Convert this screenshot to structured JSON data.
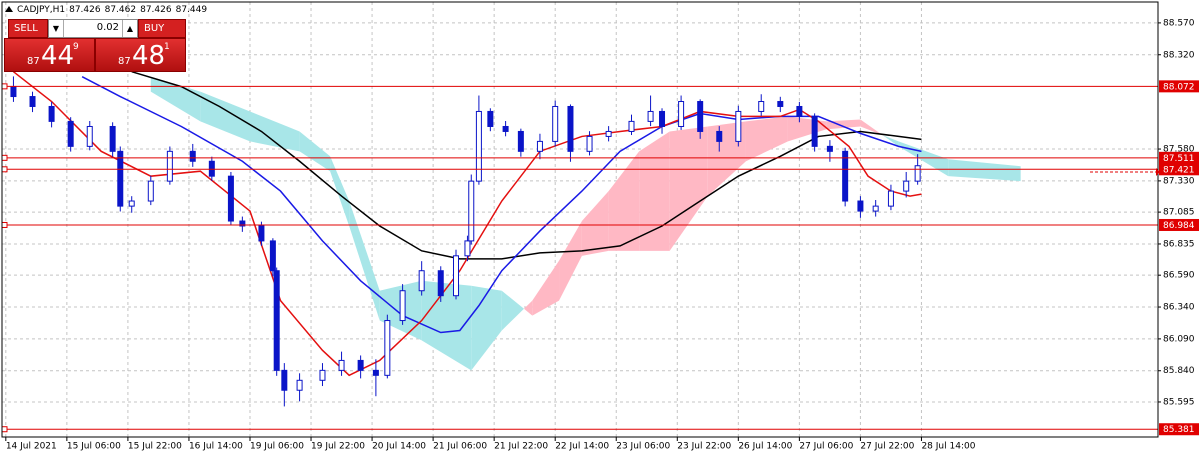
{
  "chart_data": {
    "type": "candlestick",
    "title": "CADJPY,H1",
    "header_ohlc": [
      87.426,
      87.462,
      87.426,
      87.449
    ],
    "candle_color": "#0a14c8",
    "x": [
      2,
      7,
      12,
      17,
      22,
      28,
      30,
      33,
      38,
      43,
      49,
      54,
      59,
      62,
      67,
      70,
      71,
      73,
      77,
      83,
      88,
      93,
      97,
      100,
      104,
      109,
      114,
      118,
      121,
      122,
      124,
      127,
      131,
      135,
      140,
      144,
      148,
      153,
      158,
      164,
      169,
      172,
      177,
      182,
      187,
      192,
      198,
      203,
      208,
      212,
      216,
      220,
      224,
      228,
      232,
      236,
      239
    ],
    "open": [
      88.07,
      87.992,
      87.914,
      87.797,
      87.601,
      87.757,
      87.562,
      87.132,
      87.172,
      87.328,
      87.562,
      87.484,
      87.367,
      87.015,
      86.976,
      86.859,
      86.625,
      85.843,
      85.687,
      85.765,
      85.843,
      85.921,
      85.843,
      85.804,
      86.234,
      86.468,
      86.625,
      86.429,
      86.742,
      86.859,
      87.328,
      87.875,
      87.757,
      87.718,
      87.562,
      87.64,
      87.914,
      87.562,
      87.679,
      87.718,
      87.797,
      87.875,
      87.757,
      87.953,
      87.718,
      87.64,
      87.875,
      87.953,
      87.914,
      87.836,
      87.601,
      87.562,
      87.172,
      87.093,
      87.132,
      87.25,
      87.328
    ],
    "high": [
      88.15,
      88.03,
      87.95,
      87.83,
      87.8,
      87.79,
      87.6,
      87.21,
      87.37,
      87.6,
      87.62,
      87.52,
      87.4,
      87.05,
      87.01,
      86.88,
      86.65,
      85.9,
      85.82,
      85.9,
      85.99,
      85.96,
      85.93,
      86.28,
      86.52,
      86.7,
      86.66,
      86.79,
      86.9,
      87.38,
      88.0,
      87.9,
      87.8,
      87.74,
      87.7,
      87.96,
      87.93,
      87.72,
      87.76,
      87.85,
      88.0,
      87.9,
      88.0,
      87.97,
      87.76,
      87.92,
      88.01,
      87.99,
      87.95,
      87.86,
      87.65,
      87.59,
      87.21,
      87.18,
      87.3,
      87.4,
      87.54
    ],
    "low": [
      87.95,
      87.87,
      87.75,
      87.56,
      87.57,
      87.52,
      87.09,
      87.08,
      87.14,
      87.3,
      87.44,
      87.33,
      86.98,
      86.93,
      86.82,
      86.58,
      85.8,
      85.56,
      85.6,
      85.72,
      85.8,
      85.78,
      85.64,
      85.78,
      86.2,
      86.43,
      86.38,
      86.4,
      86.7,
      86.83,
      87.3,
      87.72,
      87.68,
      87.52,
      87.5,
      87.6,
      87.48,
      87.53,
      87.64,
      87.69,
      87.76,
      87.7,
      87.73,
      87.66,
      87.56,
      87.6,
      87.84,
      87.87,
      87.79,
      87.56,
      87.48,
      87.13,
      87.04,
      87.05,
      87.1,
      87.2,
      87.3
    ],
    "close": [
      87.992,
      87.914,
      87.797,
      87.601,
      87.757,
      87.562,
      87.132,
      87.172,
      87.328,
      87.562,
      87.484,
      87.367,
      87.015,
      86.976,
      86.859,
      86.625,
      85.843,
      85.687,
      85.765,
      85.843,
      85.921,
      85.843,
      85.804,
      86.234,
      86.468,
      86.625,
      86.429,
      86.742,
      86.859,
      87.328,
      87.875,
      87.757,
      87.718,
      87.562,
      87.64,
      87.914,
      87.562,
      87.679,
      87.718,
      87.797,
      87.875,
      87.757,
      87.953,
      87.718,
      87.64,
      87.875,
      87.953,
      87.914,
      87.836,
      87.601,
      87.562,
      87.172,
      87.093,
      87.132,
      87.25,
      87.328,
      87.449
    ],
    "moving_averages": [
      {
        "color": "#000000",
        "x": [
          33,
          46,
          56,
          67,
          77,
          88,
          98,
          109,
          119,
          130,
          140,
          151,
          161,
          172,
          182,
          192,
          203,
          213,
          224,
          234,
          240
        ],
        "values": [
          88.187,
          88.07,
          87.914,
          87.718,
          87.484,
          87.211,
          86.976,
          86.781,
          86.718,
          86.718,
          86.765,
          86.781,
          86.82,
          86.976,
          87.172,
          87.367,
          87.523,
          87.679,
          87.718,
          87.679,
          87.656
        ]
      },
      {
        "color": "#1a1ae6",
        "x": [
          20,
          30,
          46,
          62,
          72,
          83,
          93,
          104,
          114,
          119,
          124,
          130,
          140,
          151,
          161,
          172,
          182,
          192,
          203,
          213,
          224,
          234,
          240
        ],
        "values": [
          88.148,
          87.992,
          87.757,
          87.484,
          87.25,
          86.859,
          86.546,
          86.273,
          86.14,
          86.156,
          86.351,
          86.625,
          86.937,
          87.25,
          87.562,
          87.757,
          87.859,
          87.812,
          87.836,
          87.836,
          87.703,
          87.601,
          87.562
        ]
      },
      {
        "color": "#e41010",
        "x": [
          2,
          12,
          25,
          38,
          51,
          64,
          72,
          83,
          90,
          98,
          109,
          119,
          130,
          140,
          151,
          161,
          172,
          182,
          192,
          203,
          208,
          213,
          221,
          226,
          232,
          237,
          240
        ],
        "values": [
          88.187,
          87.953,
          87.562,
          87.367,
          87.406,
          87.093,
          86.39,
          86.0,
          85.804,
          85.921,
          86.234,
          86.625,
          87.172,
          87.562,
          87.679,
          87.718,
          87.757,
          87.875,
          87.836,
          87.836,
          87.89,
          87.797,
          87.601,
          87.367,
          87.25,
          87.211,
          87.226
        ]
      }
    ],
    "cloud": {
      "x": [
        38,
        51,
        64,
        77,
        85,
        90,
        98,
        109,
        122,
        130,
        138,
        145,
        151,
        158,
        166,
        174,
        184,
        194,
        205,
        215,
        224,
        234,
        247,
        266
      ],
      "span_a": [
        88.148,
        88.031,
        87.875,
        87.718,
        87.523,
        87.172,
        86.468,
        86.546,
        86.507,
        86.468,
        86.273,
        86.39,
        86.742,
        86.781,
        86.781,
        86.781,
        87.211,
        87.484,
        87.64,
        87.734,
        87.757,
        87.64,
        87.5,
        87.445
      ],
      "span_b": [
        88.031,
        87.797,
        87.64,
        87.562,
        87.406,
        86.976,
        86.234,
        86.078,
        85.843,
        86.156,
        86.39,
        86.703,
        87.015,
        87.25,
        87.562,
        87.718,
        87.757,
        87.797,
        87.836,
        87.797,
        87.812,
        87.601,
        87.367,
        87.328
      ],
      "up_color": "#a8e6e8",
      "down_color": "#ffb8c4"
    },
    "levels": {
      "values": [
        88.072,
        87.511,
        87.421,
        86.984,
        85.381
      ],
      "color": "#e00000"
    },
    "xlim": [
      -1,
      302
    ],
    "xticks": [
      {
        "value": 0,
        "label": "14 Jul 2021"
      },
      {
        "value": 16,
        "label": "15 Jul 06:00"
      },
      {
        "value": 32,
        "label": "15 Jul 22:00"
      },
      {
        "value": 48,
        "label": "16 Jul 14:00"
      },
      {
        "value": 64,
        "label": "19 Jul 06:00"
      },
      {
        "value": 80,
        "label": "19 Jul 22:00"
      },
      {
        "value": 96,
        "label": "20 Jul 14:00"
      },
      {
        "value": 112,
        "label": "21 Jul 06:00"
      },
      {
        "value": 128,
        "label": "21 Jul 22:00"
      },
      {
        "value": 144,
        "label": "22 Jul 14:00"
      },
      {
        "value": 160,
        "label": "23 Jul 06:00"
      },
      {
        "value": 176,
        "label": "23 Jul 22:00"
      },
      {
        "value": 192,
        "label": "26 Jul 14:00"
      },
      {
        "value": 208,
        "label": "27 Jul 06:00"
      },
      {
        "value": 224,
        "label": "27 Jul 22:00"
      },
      {
        "value": 240,
        "label": "28 Jul 14:00"
      }
    ],
    "ylim": [
      85.32,
      88.734
    ],
    "yticks": [
      {
        "value": 88.57,
        "label": "88.570"
      },
      {
        "value": 88.32,
        "label": "88.320"
      },
      {
        "value": 87.58,
        "label": "87.580"
      },
      {
        "value": 87.33,
        "label": "87.330"
      },
      87.085,
      86.835,
      {
        "value": 86.59,
        "label": "86.590"
      },
      {
        "value": 86.34,
        "label": "86.340"
      },
      {
        "value": 86.09,
        "label": "86.090"
      },
      {
        "value": 85.84,
        "label": "85.840"
      },
      85.595
    ],
    "grid": true,
    "grid_color": "#c4c4c4"
  },
  "trade_panel": {
    "sell_label": "SELL",
    "buy_label": "BUY",
    "lot": 0.02,
    "sell_price": {
      "prefix": "87",
      "big": "44",
      "sup": "9"
    },
    "buy_price": {
      "prefix": "87",
      "big": "48",
      "sup": "1"
    }
  }
}
